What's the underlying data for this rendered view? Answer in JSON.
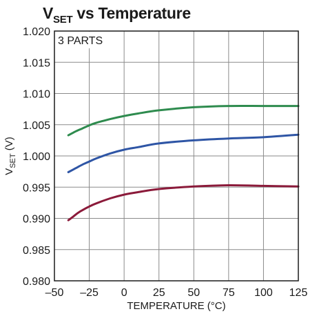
{
  "chart_data": {
    "type": "line",
    "title_main": "V",
    "title_sub": "SET",
    "title_rest": " vs Temperature",
    "xlabel": "TEMPERATURE (°C)",
    "ylabel_main": "V",
    "ylabel_sub": "SET",
    "ylabel_rest": " (V)",
    "annotation": "3 PARTS",
    "xlim": [
      -50,
      125
    ],
    "ylim": [
      0.98,
      1.02
    ],
    "x_ticks": [
      "–50",
      "–25",
      "0",
      "25",
      "50",
      "75",
      "100",
      "125"
    ],
    "x_tick_values": [
      -50,
      -25,
      0,
      25,
      50,
      75,
      100,
      125
    ],
    "y_ticks": [
      "0.980",
      "0.985",
      "0.990",
      "0.995",
      "1.000",
      "1.005",
      "1.010",
      "1.015",
      "1.020"
    ],
    "y_tick_values": [
      0.98,
      0.985,
      0.99,
      0.995,
      1.0,
      1.005,
      1.01,
      1.015,
      1.02
    ],
    "grid": true,
    "series": [
      {
        "color": "#2e8b4e",
        "x": [
          -40,
          -35,
          -30,
          -25,
          -20,
          -10,
          0,
          10,
          25,
          50,
          75,
          100,
          125
        ],
        "y": [
          1.0033,
          1.0039,
          1.0044,
          1.0049,
          1.0053,
          1.0059,
          1.0064,
          1.0068,
          1.0073,
          1.0078,
          1.008,
          1.008,
          1.008
        ]
      },
      {
        "color": "#2e55a5",
        "x": [
          -40,
          -35,
          -30,
          -25,
          -20,
          -10,
          0,
          10,
          25,
          50,
          75,
          100,
          125
        ],
        "y": [
          0.9974,
          0.998,
          0.9986,
          0.9991,
          0.9996,
          1.0004,
          1.001,
          1.0014,
          1.002,
          1.0025,
          1.0028,
          1.003,
          1.0034
        ]
      },
      {
        "color": "#8b1a3a",
        "x": [
          -40,
          -37,
          -33,
          -30,
          -25,
          -20,
          -10,
          0,
          10,
          25,
          50,
          75,
          100,
          125
        ],
        "y": [
          0.9897,
          0.9902,
          0.9909,
          0.9913,
          0.9919,
          0.9924,
          0.9932,
          0.9938,
          0.9942,
          0.9947,
          0.9951,
          0.9953,
          0.9952,
          0.9951
        ]
      }
    ]
  }
}
